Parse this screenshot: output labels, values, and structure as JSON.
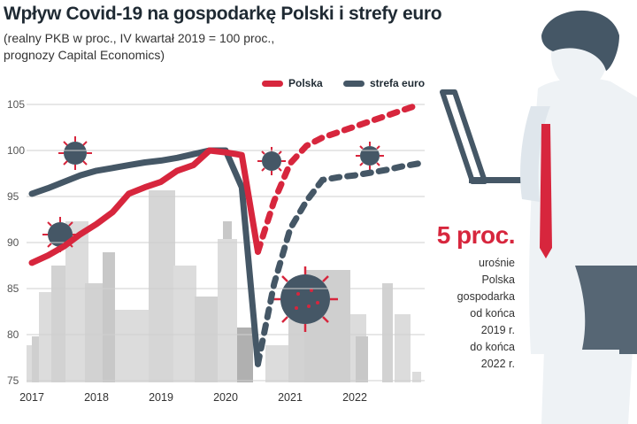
{
  "header": {
    "title": "Wpływ Covid-19 na gospodarkę Polski i strefy euro",
    "subtitle": "(realny PKB w proc., IV kwartał 2019 = 100 proc.,\n prognozy Capital Economics)"
  },
  "colors": {
    "polska": "#d7263d",
    "strefa_euro": "#455766",
    "text": "#1f2a33",
    "skyline": "#dcdcdc"
  },
  "legend": {
    "polska": "Polska",
    "strefa_euro": "strefa euro"
  },
  "note": {
    "value": "5 proc.",
    "text": "urośnie\nPolska\ngospodarka\nod końca\n2019 r.\ndo końca\n2022 r."
  },
  "icons": [
    "coronavirus-icon",
    "city-skyline-illustration",
    "businessman-with-laptop-illustration"
  ],
  "chart_data": {
    "type": "line",
    "title": "Wpływ Covid-19 na gospodarkę Polski i strefy euro",
    "xlabel": "",
    "ylabel": "",
    "ylim": [
      75,
      105
    ],
    "xlim": [
      2017,
      2023
    ],
    "y_ticks": [
      "105",
      "100",
      "95",
      "90",
      "85",
      "80",
      "75"
    ],
    "x_ticks": [
      "2017",
      "2018",
      "2019",
      "2020",
      "2021",
      "2022"
    ],
    "grid": true,
    "legend_position": "top-right",
    "series": [
      {
        "name": "Polska",
        "color": "#d7263d",
        "actual": [
          [
            2017.0,
            87.8
          ],
          [
            2017.25,
            88.6
          ],
          [
            2017.5,
            89.6
          ],
          [
            2017.75,
            90.9
          ],
          [
            2018.0,
            92.0
          ],
          [
            2018.25,
            93.3
          ],
          [
            2018.5,
            95.3
          ],
          [
            2018.75,
            96.0
          ],
          [
            2019.0,
            96.6
          ],
          [
            2019.25,
            97.8
          ],
          [
            2019.5,
            98.4
          ],
          [
            2019.75,
            100.0
          ],
          [
            2020.0,
            99.8
          ],
          [
            2020.25,
            99.5
          ],
          [
            2020.5,
            89.0
          ]
        ],
        "forecast": [
          [
            2020.5,
            89.0
          ],
          [
            2020.75,
            94.5
          ],
          [
            2021.0,
            98.6
          ],
          [
            2021.25,
            100.5
          ],
          [
            2021.5,
            101.4
          ],
          [
            2021.75,
            102.0
          ],
          [
            2022.0,
            102.6
          ],
          [
            2022.25,
            103.2
          ],
          [
            2022.5,
            103.8
          ],
          [
            2022.75,
            104.4
          ],
          [
            2023.0,
            105.0
          ]
        ]
      },
      {
        "name": "strefa euro",
        "color": "#455766",
        "actual": [
          [
            2017.0,
            95.3
          ],
          [
            2017.25,
            95.9
          ],
          [
            2017.5,
            96.6
          ],
          [
            2017.75,
            97.3
          ],
          [
            2018.0,
            97.8
          ],
          [
            2018.25,
            98.1
          ],
          [
            2018.5,
            98.4
          ],
          [
            2018.75,
            98.7
          ],
          [
            2019.0,
            98.9
          ],
          [
            2019.25,
            99.2
          ],
          [
            2019.5,
            99.6
          ],
          [
            2019.75,
            100.0
          ],
          [
            2020.0,
            100.0
          ],
          [
            2020.25,
            96.0
          ],
          [
            2020.5,
            76.8
          ]
        ],
        "forecast": [
          [
            2020.5,
            76.8
          ],
          [
            2020.75,
            85.5
          ],
          [
            2021.0,
            91.5
          ],
          [
            2021.25,
            94.5
          ],
          [
            2021.5,
            96.8
          ],
          [
            2021.75,
            97.1
          ],
          [
            2022.0,
            97.3
          ],
          [
            2022.25,
            97.6
          ],
          [
            2022.5,
            97.9
          ],
          [
            2022.75,
            98.3
          ],
          [
            2023.0,
            98.6
          ]
        ]
      }
    ]
  }
}
